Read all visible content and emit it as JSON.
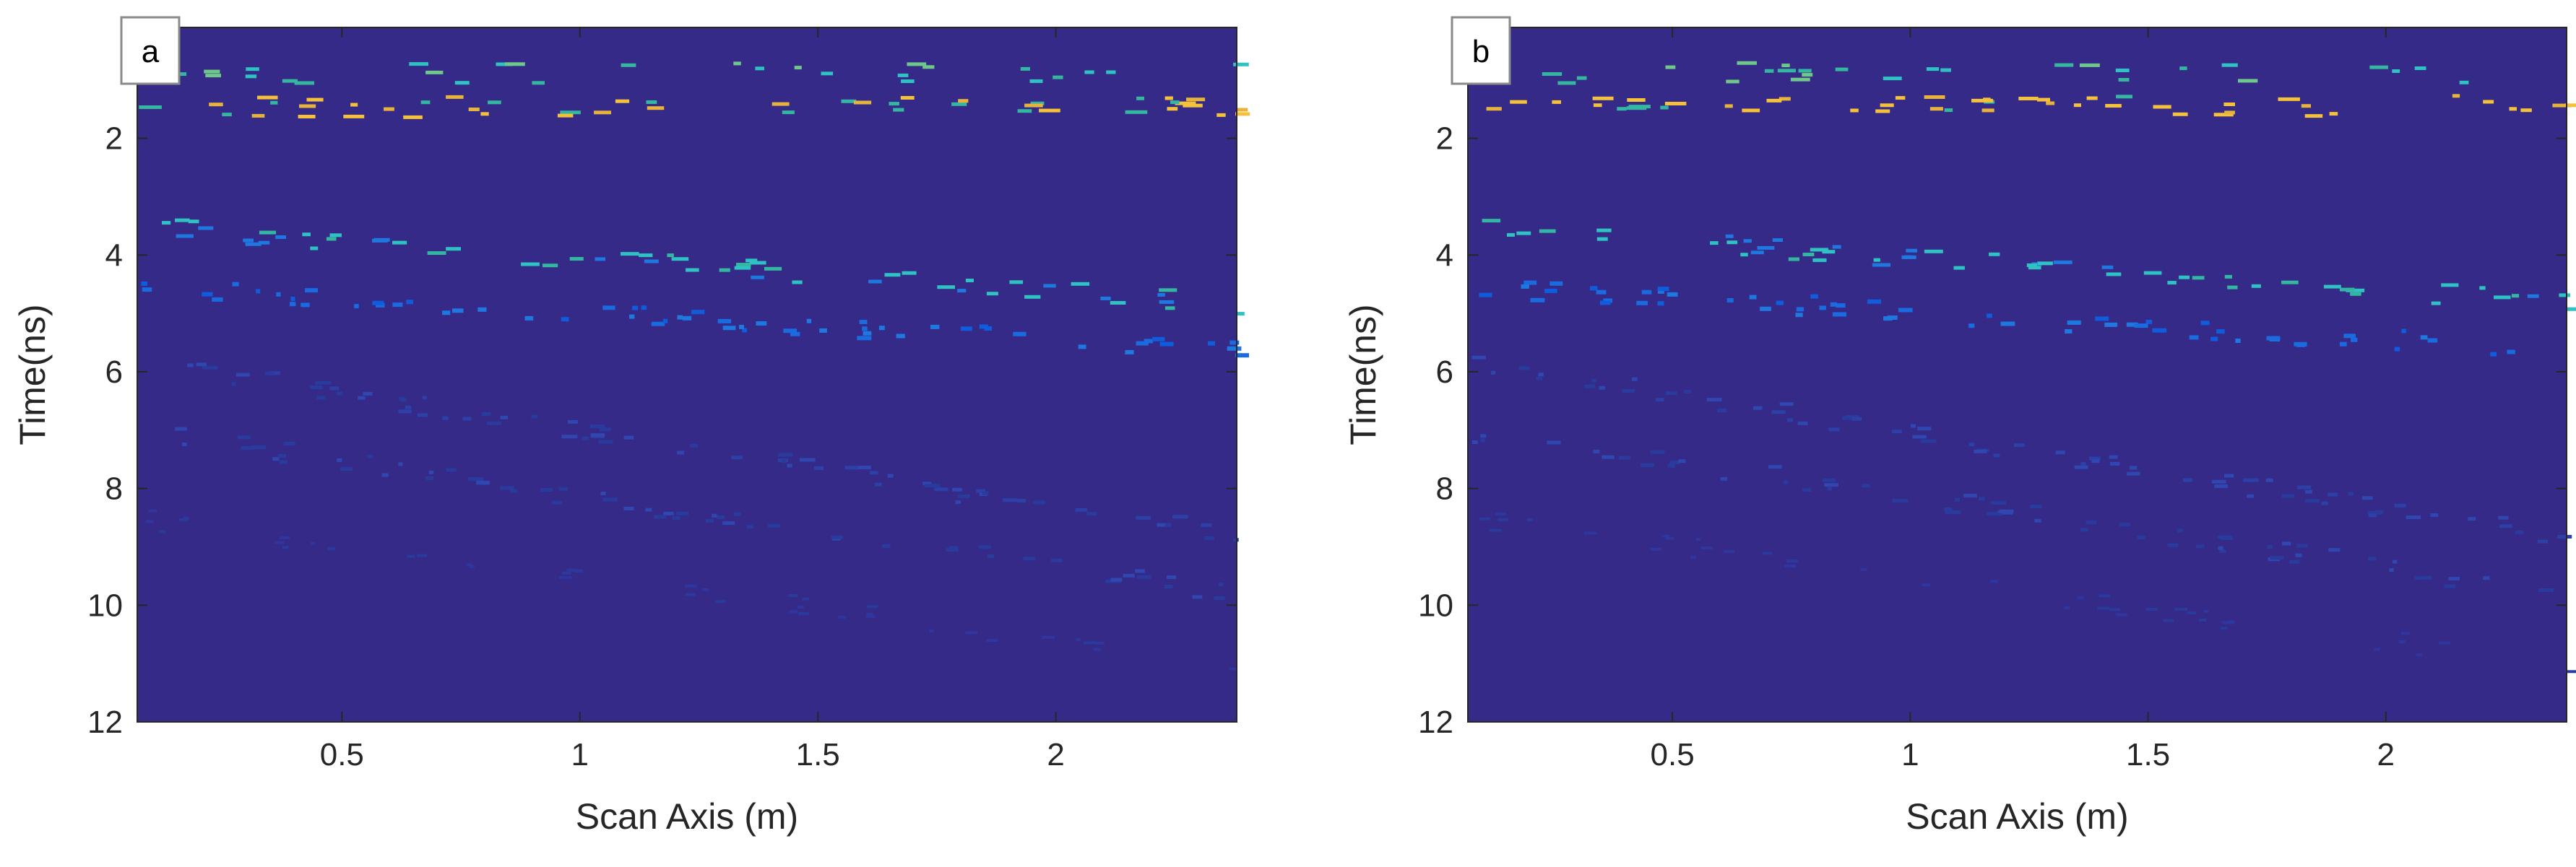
{
  "colors": {
    "background": "#352A87",
    "cyan": "#2FC2C2",
    "teal": "#33B7A0",
    "yellow": "#F5C13A",
    "blue": "#1E78E0",
    "midblue": "#0F5CDD",
    "darkblue": "#2A3B9E",
    "axis": "#262626"
  },
  "chart_data": [
    {
      "type": "heatmap",
      "panel_label": "a",
      "xlabel": "Scan Axis (m)",
      "ylabel": "Time(ns)",
      "xlim": [
        0.07,
        2.38
      ],
      "ylim": [
        0.1,
        12
      ],
      "y_reversed": true,
      "xticks": [
        0.5,
        1,
        1.5,
        2
      ],
      "xtick_labels": [
        "0.5",
        "1",
        "1.5",
        "2"
      ],
      "yticks": [
        2,
        4,
        6,
        8,
        10,
        12
      ],
      "ytick_labels": [
        "2",
        "4",
        "6",
        "8",
        "10",
        "12"
      ],
      "colormap": "parula",
      "background_value": 0
    },
    {
      "type": "heatmap",
      "panel_label": "b",
      "xlabel": "Scan Axis (m)",
      "ylabel": "Time(ns)",
      "xlim": [
        0.07,
        2.38
      ],
      "ylim": [
        0.1,
        12
      ],
      "y_reversed": true,
      "xticks": [
        0.5,
        1,
        1.5,
        2
      ],
      "xtick_labels": [
        "0.5",
        "1",
        "1.5",
        "2"
      ],
      "yticks": [
        2,
        4,
        6,
        8,
        10,
        12
      ],
      "ytick_labels": [
        "2",
        "4",
        "6",
        "8",
        "10",
        "12"
      ],
      "colormap": "parula",
      "background_value": 0
    }
  ]
}
